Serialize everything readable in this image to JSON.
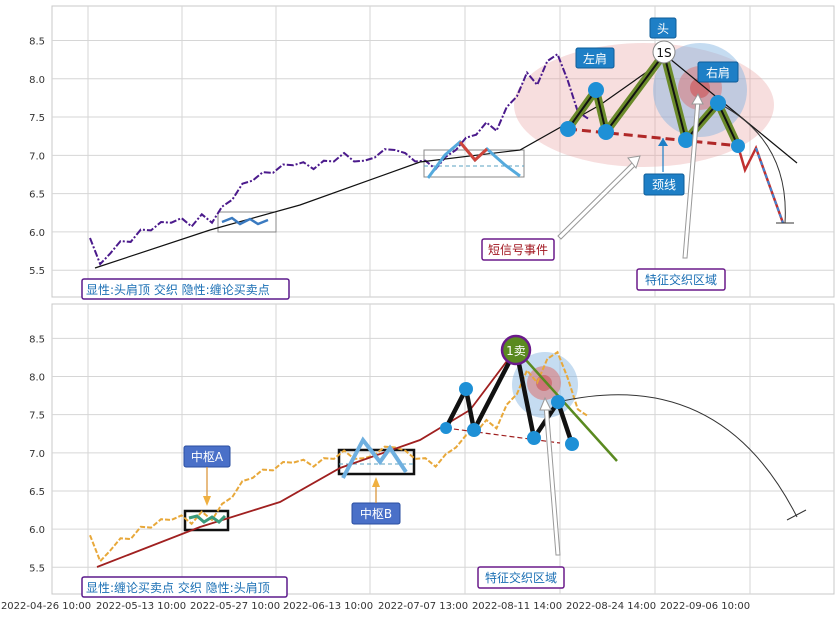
{
  "chart_data": [
    {
      "type": "line",
      "panel": "top",
      "ylim": [
        5.15,
        8.95
      ],
      "yticks": [
        "5.5",
        "6.0",
        "6.5",
        "7.0",
        "7.5",
        "8.0",
        "8.5"
      ],
      "grid": true,
      "series": [
        {
          "values": [
            5.95,
            5.55,
            5.75,
            5.85,
            5.9,
            6.0,
            6.05,
            6.1,
            6.15,
            6.15,
            6.1,
            6.2,
            6.15,
            6.3,
            6.45,
            6.6,
            6.7,
            6.75,
            6.8,
            6.85,
            6.9,
            6.88,
            6.85,
            6.9,
            6.95,
            7.0,
            6.95,
            6.9,
            7.0,
            7.05,
            7.1,
            7.0,
            6.95,
            6.9,
            6.85,
            6.95,
            7.1,
            7.2,
            7.3,
            7.4,
            7.35,
            7.6,
            7.8,
            8.05,
            7.95,
            8.2,
            8.35,
            7.95,
            7.6,
            7.45
          ]
        }
      ],
      "annotations": {
        "head": "头",
        "head_marker": "1S",
        "left_shoulder": "左肩",
        "right_shoulder": "右肩",
        "neckline": "颈线",
        "short_signal": "短信号事件",
        "feature_zone": "特征交织区域",
        "caption": "显性:头肩顶 交织 隐性:缠论买卖点"
      }
    },
    {
      "type": "line",
      "panel": "bottom",
      "ylim": [
        5.15,
        8.95
      ],
      "yticks": [
        "5.5",
        "6.0",
        "6.5",
        "7.0",
        "7.5",
        "8.0",
        "8.5"
      ],
      "grid": true,
      "x_ticks": [
        "2022-04-26 10:00",
        "2022-05-13 10:00",
        "2022-05-27 10:00",
        "2022-06-13 10:00",
        "2022-07-07 13:00",
        "2022-08-11 14:00",
        "2022-08-24 14:00",
        "2022-09-06 10:00"
      ],
      "series": [
        {
          "values": [
            5.95,
            5.55,
            5.75,
            5.85,
            5.9,
            6.0,
            6.05,
            6.1,
            6.15,
            6.15,
            6.1,
            6.2,
            6.15,
            6.3,
            6.45,
            6.6,
            6.7,
            6.75,
            6.8,
            6.85,
            6.9,
            6.88,
            6.85,
            6.9,
            6.95,
            7.0,
            6.95,
            6.9,
            7.0,
            7.05,
            7.1,
            7.0,
            6.95,
            6.9,
            6.85,
            6.95,
            7.1,
            7.2,
            7.3,
            7.4,
            7.35,
            7.6,
            7.8,
            8.05,
            7.95,
            8.2,
            8.35,
            7.95,
            7.6,
            7.45
          ]
        }
      ],
      "annotations": {
        "sell_marker": "1卖",
        "pivot_a": "中枢A",
        "pivot_b": "中枢B",
        "feature_zone": "特征交织区域",
        "caption": "显性:缠论买卖点 交织 隐性:头肩顶"
      }
    }
  ]
}
